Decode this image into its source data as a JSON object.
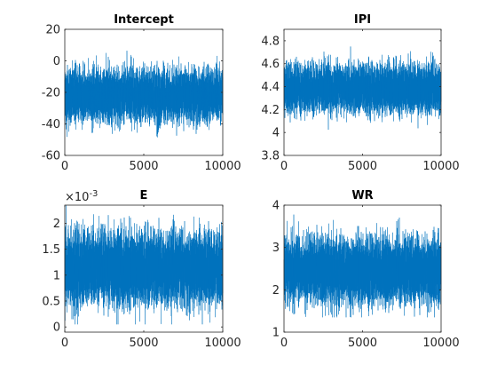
{
  "figure": {
    "background": "#ffffff",
    "axes_color": "#262626",
    "line_color": "#0072bd"
  },
  "chart_data": [
    {
      "type": "line",
      "title": "Intercept",
      "xlim": [
        0,
        10000
      ],
      "ylim": [
        -60,
        20
      ],
      "xticks": [
        0,
        5000,
        10000
      ],
      "xtick_labels": [
        "0",
        "5000",
        "10000"
      ],
      "yticks": [
        -60,
        -40,
        -20,
        0,
        20
      ],
      "ytick_labels": [
        "-60",
        "-40",
        "-20",
        "0",
        "20"
      ],
      "series": [
        {
          "n": 10000,
          "mean": -22,
          "sd": 7.5,
          "min": -55,
          "max": 12
        }
      ]
    },
    {
      "type": "line",
      "title": "IPI",
      "xlim": [
        0,
        10000
      ],
      "ylim": [
        3.8,
        4.9
      ],
      "xticks": [
        0,
        5000,
        10000
      ],
      "xtick_labels": [
        "0",
        "5000",
        "10000"
      ],
      "yticks": [
        3.8,
        4,
        4.2,
        4.4,
        4.6,
        4.8
      ],
      "ytick_labels": [
        "3.8",
        "4",
        "4.2",
        "4.4",
        "4.6",
        "4.8"
      ],
      "series": [
        {
          "n": 10000,
          "mean": 4.38,
          "sd": 0.095,
          "min": 3.97,
          "max": 4.9
        }
      ]
    },
    {
      "type": "line",
      "title": "E",
      "exponent_label": "10",
      "exponent_power": "-3",
      "xlim": [
        0,
        10000
      ],
      "ylim": [
        -0.0001,
        0.00235
      ],
      "xticks": [
        0,
        5000,
        10000
      ],
      "xtick_labels": [
        "0",
        "5000",
        "10000"
      ],
      "yticks": [
        0,
        0.0005,
        0.001,
        0.0015,
        0.002
      ],
      "ytick_labels": [
        "0",
        "0.5",
        "1",
        "1.5",
        "2"
      ],
      "series": [
        {
          "n": 10000,
          "mean": 0.00112,
          "sd": 0.00032,
          "min": 5e-05,
          "max": 0.00235
        }
      ]
    },
    {
      "type": "line",
      "title": "WR",
      "xlim": [
        0,
        10000
      ],
      "ylim": [
        1,
        4
      ],
      "xticks": [
        0,
        5000,
        10000
      ],
      "xtick_labels": [
        "0",
        "5000",
        "10000"
      ],
      "yticks": [
        1,
        2,
        3,
        4
      ],
      "ytick_labels": [
        "1",
        "2",
        "3",
        "4"
      ],
      "series": [
        {
          "n": 10000,
          "mean": 2.45,
          "sd": 0.35,
          "min": 1.35,
          "max": 3.8
        }
      ]
    }
  ]
}
